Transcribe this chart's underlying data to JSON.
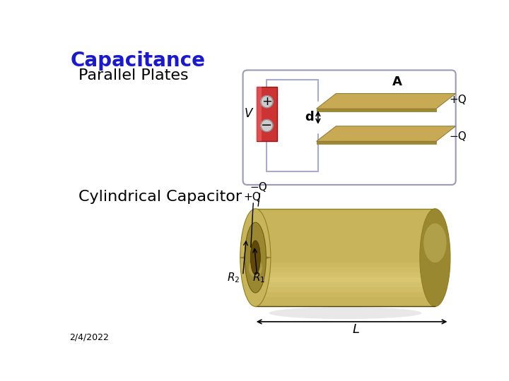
{
  "title": "Capacitance",
  "title_color": "#1a1acc",
  "title_fontsize": 20,
  "label_parallel": "Parallel Plates",
  "label_cylindrical": "Cylindrical Capacitor",
  "label_fontsize": 16,
  "date_label": "2/4/2022",
  "date_fontsize": 9,
  "bg_color": "#ffffff",
  "text_color": "#000000",
  "plate_color_top": "#c8aa55",
  "plate_color_side": "#a08830",
  "battery_color": "#cc3333",
  "wire_color": "#aaaacc",
  "cyl_main": "#c8b45a",
  "cyl_dark": "#9a8830",
  "cyl_light": "#e8d888",
  "cyl_face_dark": "#b0982a",
  "cyl_inner": "#7a6010",
  "shadow_color": "#cccccc"
}
